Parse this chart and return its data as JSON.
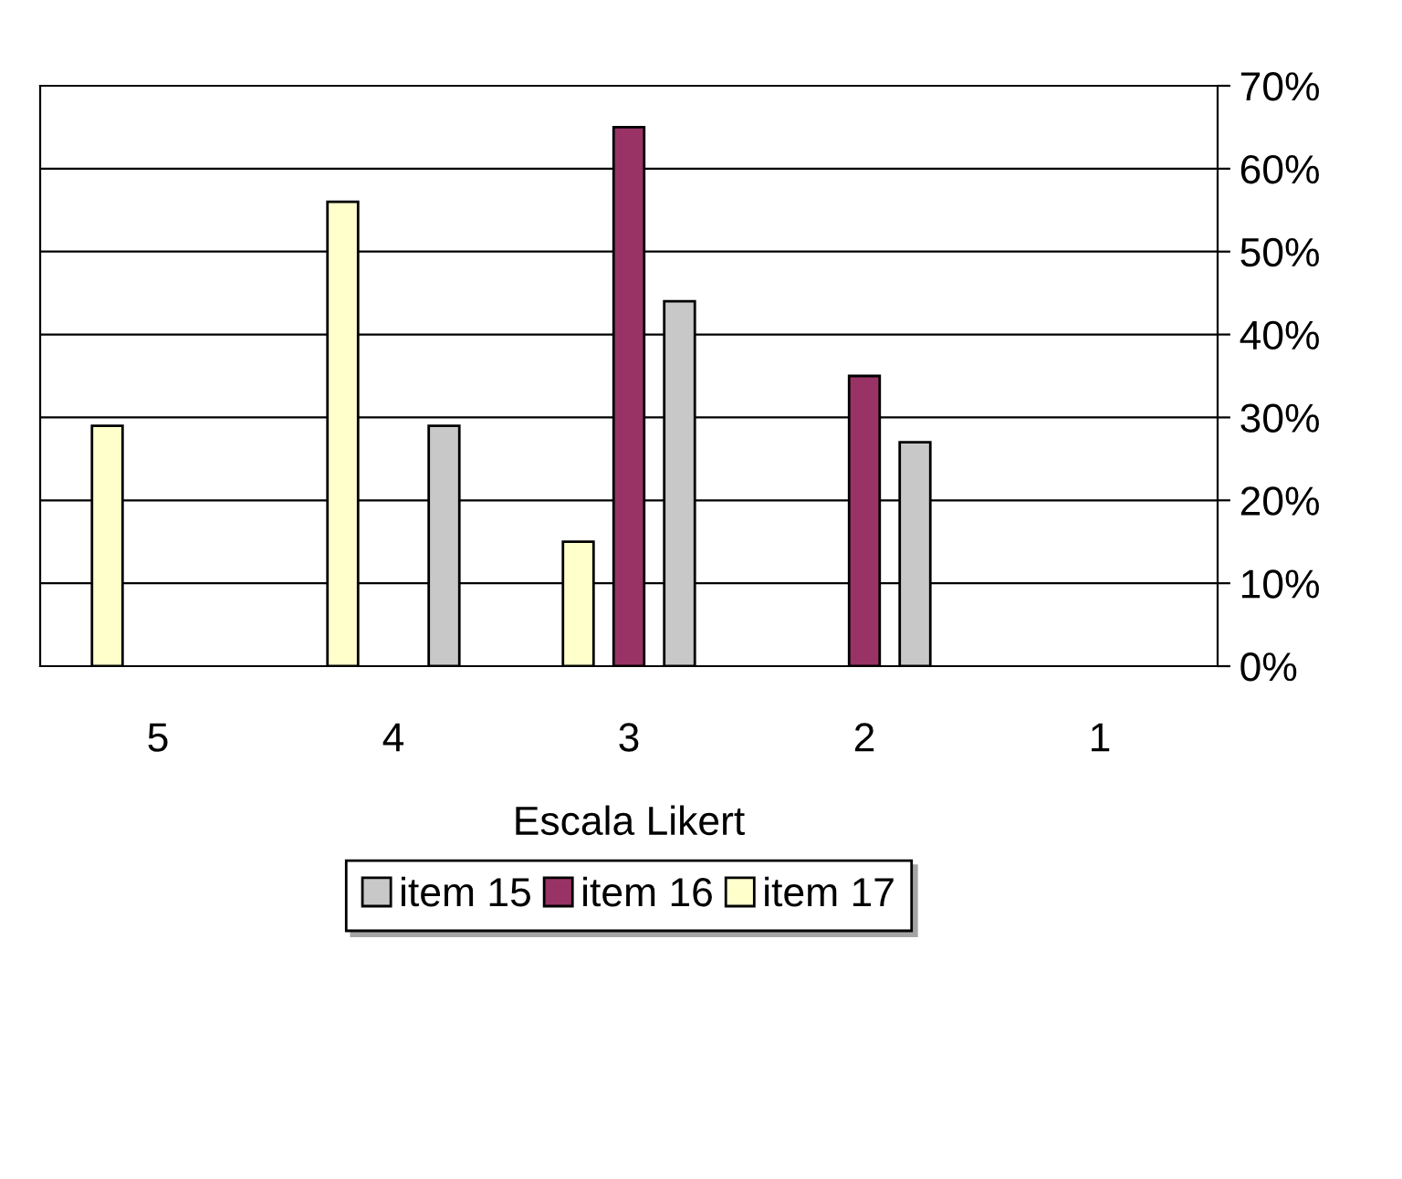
{
  "chart_data": {
    "type": "bar",
    "xlabel": "Escala Likert",
    "categories": [
      "5",
      "4",
      "3",
      "2",
      "1"
    ],
    "series": [
      {
        "name": "item 15",
        "color": "#c8c8c8",
        "values": [
          null,
          29,
          44,
          27,
          null
        ]
      },
      {
        "name": "item 16",
        "color": "#993366",
        "values": [
          null,
          null,
          65,
          35,
          null
        ]
      },
      {
        "name": "item 17",
        "color": "#ffffcc",
        "values": [
          29,
          56,
          15,
          null,
          null
        ]
      }
    ],
    "ylim": [
      0,
      70
    ],
    "yticks": [
      {
        "value": 0,
        "label": "0%"
      },
      {
        "value": 10,
        "label": "10%"
      },
      {
        "value": 20,
        "label": "20%"
      },
      {
        "value": 30,
        "label": "30%"
      },
      {
        "value": 40,
        "label": "40%"
      },
      {
        "value": 50,
        "label": "50%"
      },
      {
        "value": 60,
        "label": "60%"
      },
      {
        "value": 70,
        "label": "70%"
      }
    ],
    "grid": "y",
    "legend": "bottom"
  }
}
